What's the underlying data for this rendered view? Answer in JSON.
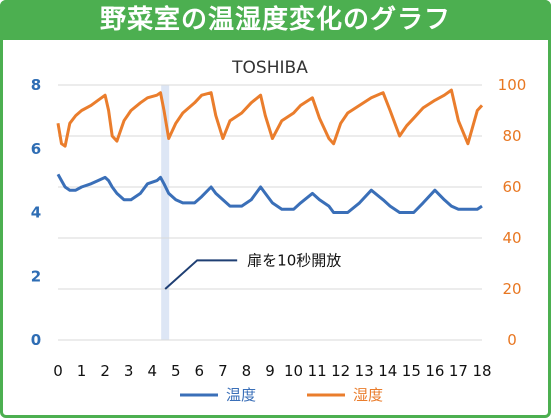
{
  "header": {
    "title": "野菜室の温湿度変化のグラフ"
  },
  "chart_data": {
    "type": "line",
    "title": "TOSHIBA",
    "x": [
      0.0,
      0.15,
      0.3,
      0.5,
      0.75,
      1.0,
      1.4,
      1.7,
      2.0,
      2.15,
      2.3,
      2.5,
      2.8,
      3.1,
      3.5,
      3.8,
      4.2,
      4.35,
      4.5,
      4.7,
      5.0,
      5.3,
      5.8,
      6.1,
      6.5,
      6.7,
      7.0,
      7.3,
      7.8,
      8.2,
      8.6,
      8.8,
      9.1,
      9.5,
      10.0,
      10.3,
      10.8,
      11.1,
      11.5,
      11.7,
      12.0,
      12.3,
      12.8,
      13.3,
      13.8,
      14.1,
      14.5,
      14.8,
      15.1,
      15.5,
      16.0,
      16.4,
      16.7,
      17.0,
      17.4,
      17.8,
      18.0
    ],
    "xlim": [
      0,
      18
    ],
    "x_ticks": [
      0,
      1,
      2,
      3,
      4,
      5,
      6,
      7,
      8,
      9,
      10,
      11,
      12,
      13,
      14,
      15,
      16,
      17,
      18
    ],
    "y_left": {
      "lim": [
        0,
        8
      ],
      "ticks": [
        "0",
        "2",
        "4",
        "6",
        "8"
      ],
      "color": "#2e6db4"
    },
    "y_right": {
      "lim": [
        0,
        100
      ],
      "ticks": [
        "0",
        "20",
        "40",
        "60",
        "80",
        "100"
      ],
      "color": "#e87722"
    },
    "series": [
      {
        "name": "温度",
        "axis": "left",
        "color": "#3a6fb8",
        "values": [
          5.2,
          5.0,
          4.8,
          4.7,
          4.7,
          4.8,
          4.9,
          5.0,
          5.1,
          5.0,
          4.8,
          4.6,
          4.4,
          4.4,
          4.6,
          4.9,
          5.0,
          5.1,
          4.9,
          4.6,
          4.4,
          4.3,
          4.3,
          4.5,
          4.8,
          4.6,
          4.4,
          4.2,
          4.2,
          4.4,
          4.8,
          4.6,
          4.3,
          4.1,
          4.1,
          4.3,
          4.6,
          4.4,
          4.2,
          4.0,
          4.0,
          4.0,
          4.3,
          4.7,
          4.4,
          4.2,
          4.0,
          4.0,
          4.0,
          4.3,
          4.7,
          4.4,
          4.2,
          4.1,
          4.1,
          4.1,
          4.2
        ]
      },
      {
        "name": "湿度",
        "axis": "right",
        "color": "#ea7d2c",
        "values": [
          85,
          77,
          76,
          85,
          88,
          90,
          92,
          94,
          96,
          90,
          80,
          78,
          86,
          90,
          93,
          95,
          96,
          97,
          90,
          79,
          85,
          89,
          93,
          96,
          97,
          88,
          79,
          86,
          89,
          93,
          96,
          88,
          79,
          86,
          89,
          92,
          95,
          87,
          79,
          77,
          85,
          89,
          92,
          95,
          97,
          90,
          80,
          84,
          87,
          91,
          94,
          96,
          98,
          86,
          77,
          90,
          92
        ]
      }
    ],
    "annotation": {
      "text": "扉を10秒開放",
      "x": 4.55
    },
    "legend": {
      "position": "bottom",
      "items": [
        "温度",
        "湿度"
      ]
    },
    "grid": true
  }
}
